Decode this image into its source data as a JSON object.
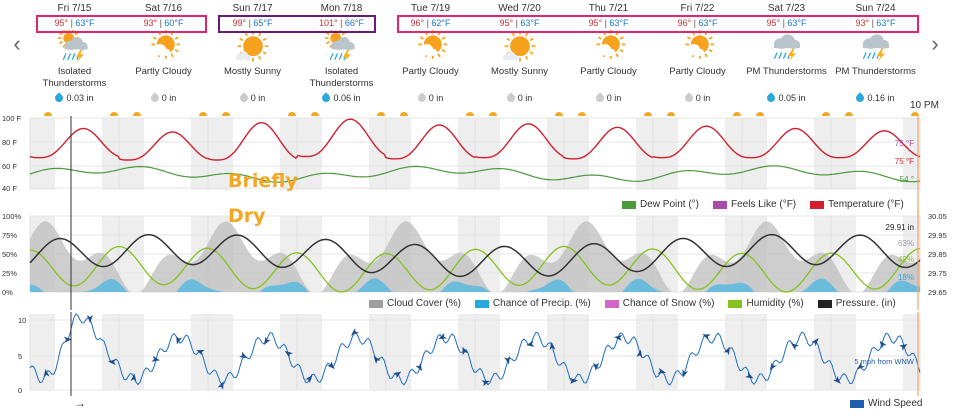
{
  "nav": {
    "prev_label": "‹",
    "next_label": "›"
  },
  "days": [
    {
      "name": "Fri 7/15",
      "hi": "95°",
      "lo": "63°F",
      "icon": "thunderstorm-sun-icon",
      "cond": "Isolated Thunderstorms",
      "precip": "0.03 in",
      "precip_color": "#29a8e0"
    },
    {
      "name": "Sat 7/16",
      "hi": "93°",
      "lo": "60°F",
      "icon": "partly-cloudy-icon",
      "cond": "Partly Cloudy",
      "precip": "0 in",
      "precip_color": "#cccccc"
    },
    {
      "name": "Sun 7/17",
      "hi": "99°",
      "lo": "65°F",
      "icon": "mostly-sunny-icon",
      "cond": "Mostly Sunny",
      "precip": "0 in",
      "precip_color": "#cccccc"
    },
    {
      "name": "Mon 7/18",
      "hi": "101°",
      "lo": "66°F",
      "icon": "thunderstorm-sun-icon",
      "cond": "Isolated Thunderstorms",
      "precip": "0.06 in",
      "precip_color": "#29a8e0"
    },
    {
      "name": "Tue 7/19",
      "hi": "96°",
      "lo": "62°F",
      "icon": "partly-cloudy-icon",
      "cond": "Partly Cloudy",
      "precip": "0 in",
      "precip_color": "#cccccc"
    },
    {
      "name": "Wed 7/20",
      "hi": "95°",
      "lo": "63°F",
      "icon": "mostly-sunny-icon",
      "cond": "Mostly Sunny",
      "precip": "0 in",
      "precip_color": "#cccccc"
    },
    {
      "name": "Thu 7/21",
      "hi": "95°",
      "lo": "63°F",
      "icon": "partly-cloudy-icon",
      "cond": "Partly Cloudy",
      "precip": "0 in",
      "precip_color": "#cccccc"
    },
    {
      "name": "Fri 7/22",
      "hi": "96°",
      "lo": "63°F",
      "icon": "partly-cloudy-icon",
      "cond": "Partly Cloudy",
      "precip": "0 in",
      "precip_color": "#cccccc"
    },
    {
      "name": "Sat 7/23",
      "hi": "95°",
      "lo": "63°F",
      "icon": "thunderstorm-icon",
      "cond": "PM Thunderstorms",
      "precip": "0.05 in",
      "precip_color": "#29a8e0"
    },
    {
      "name": "Sun 7/24",
      "hi": "93°",
      "lo": "63°F",
      "icon": "thunderstorm-icon",
      "cond": "PM Thunderstorms",
      "precip": "0.16 in",
      "precip_color": "#29a8e0"
    }
  ],
  "highlight_colors": [
    "#e6246e",
    "#6a1b7a",
    "#e6246e"
  ],
  "time_marker": "10 PM",
  "overlay_note": [
    "Briefly",
    "Dry"
  ],
  "temp_panel": {
    "y_ticks": [
      "100 F",
      "80 F",
      "60 F",
      "40 F"
    ],
    "end_labels": [
      "75 °F",
      "75 °F",
      "54 °"
    ],
    "legend": [
      {
        "label": "Dew Point (°)",
        "color": "#4a9a3c"
      },
      {
        "label": "Feels Like (°F)",
        "color": "#a64ca6"
      },
      {
        "label": "Temperature (°F)",
        "color": "#d0202e"
      }
    ]
  },
  "pct_panel": {
    "y_ticks": [
      "100%",
      "75%",
      "50%",
      "25%",
      "0%"
    ],
    "right_ticks": [
      "30.05",
      "29.95",
      "29.85",
      "29.75",
      "29.65"
    ],
    "end_labels": [
      "29.91 in",
      "63%",
      "49%",
      "18%"
    ],
    "legend": [
      {
        "label": "Cloud Cover (%)",
        "color": "#9e9e9e"
      },
      {
        "label": "Chance of Precip. (%)",
        "color": "#29a8e0"
      },
      {
        "label": "Chance of Snow (%)",
        "color": "#d066c8"
      },
      {
        "label": "Humidity (%)",
        "color": "#86c21f"
      },
      {
        "label": "Pressure. (in)",
        "color": "#222222"
      }
    ]
  },
  "wind_panel": {
    "y_ticks": [
      "10",
      "5",
      "0"
    ],
    "end_label": "5 mph from WNW",
    "legend": [
      {
        "label": "Wind Speed",
        "color": "#1f5fad"
      }
    ]
  },
  "colors": {
    "temp": "#d0202e",
    "dew": "#4a9a3c",
    "cloud": "#bdbdbd",
    "precip": "#5bb8e0",
    "humidity": "#86c21f",
    "pressure": "#333333",
    "wind": "#1f6fc2",
    "hi": "#d32f2f",
    "lo": "#1976d2"
  }
}
